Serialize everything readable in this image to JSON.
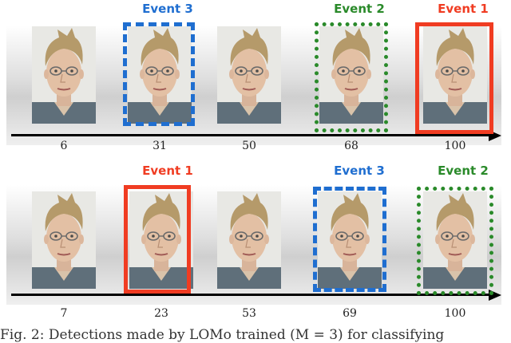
{
  "colors": {
    "event1": "#f03c22",
    "event2": "#2a8a2a",
    "event3": "#1f6ed0"
  },
  "rows": [
    {
      "ticks": [
        "6",
        "31",
        "50",
        "68",
        "100"
      ],
      "events": [
        {
          "label": "Event 3",
          "color": "event3",
          "style": "dashed",
          "frame_index": 1
        },
        {
          "label": "Event 2",
          "color": "event2",
          "style": "dotted",
          "frame_index": 3
        },
        {
          "label": "Event 1",
          "color": "event1",
          "style": "solid",
          "frame_index": 4
        }
      ]
    },
    {
      "ticks": [
        "7",
        "23",
        "53",
        "69",
        "100"
      ],
      "events": [
        {
          "label": "Event 1",
          "color": "event1",
          "style": "solid",
          "frame_index": 1
        },
        {
          "label": "Event 3",
          "color": "event3",
          "style": "dashed",
          "frame_index": 3
        },
        {
          "label": "Event 2",
          "color": "event2",
          "style": "dotted",
          "frame_index": 4
        }
      ]
    }
  ],
  "caption": "Fig. 2: Detections made by LOMo trained (M = 3) for classifying"
}
